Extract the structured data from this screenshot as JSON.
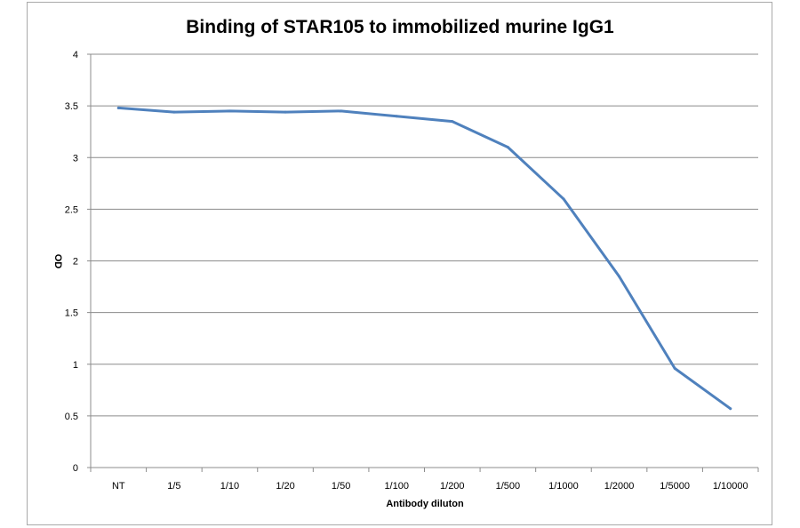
{
  "chart_data": {
    "type": "line",
    "title": "Binding of STAR105 to immobilized murine IgG1",
    "xlabel": "Antibody diluton",
    "ylabel": "OD",
    "categories": [
      "NT",
      "1/5",
      "1/10",
      "1/20",
      "1/50",
      "1/100",
      "1/200",
      "1/500",
      "1/1000",
      "1/2000",
      "1/5000",
      "1/10000"
    ],
    "series": [
      {
        "values": [
          3.48,
          3.44,
          3.45,
          3.44,
          3.45,
          3.4,
          3.35,
          3.1,
          2.6,
          1.85,
          0.96,
          0.57
        ]
      }
    ],
    "ylim": [
      0,
      4
    ],
    "yticks": [
      "0",
      "0.5",
      "1",
      "1.5",
      "2",
      "2.5",
      "3",
      "3.5",
      "4"
    ],
    "grid": true,
    "line_color": "#4f81bd"
  }
}
